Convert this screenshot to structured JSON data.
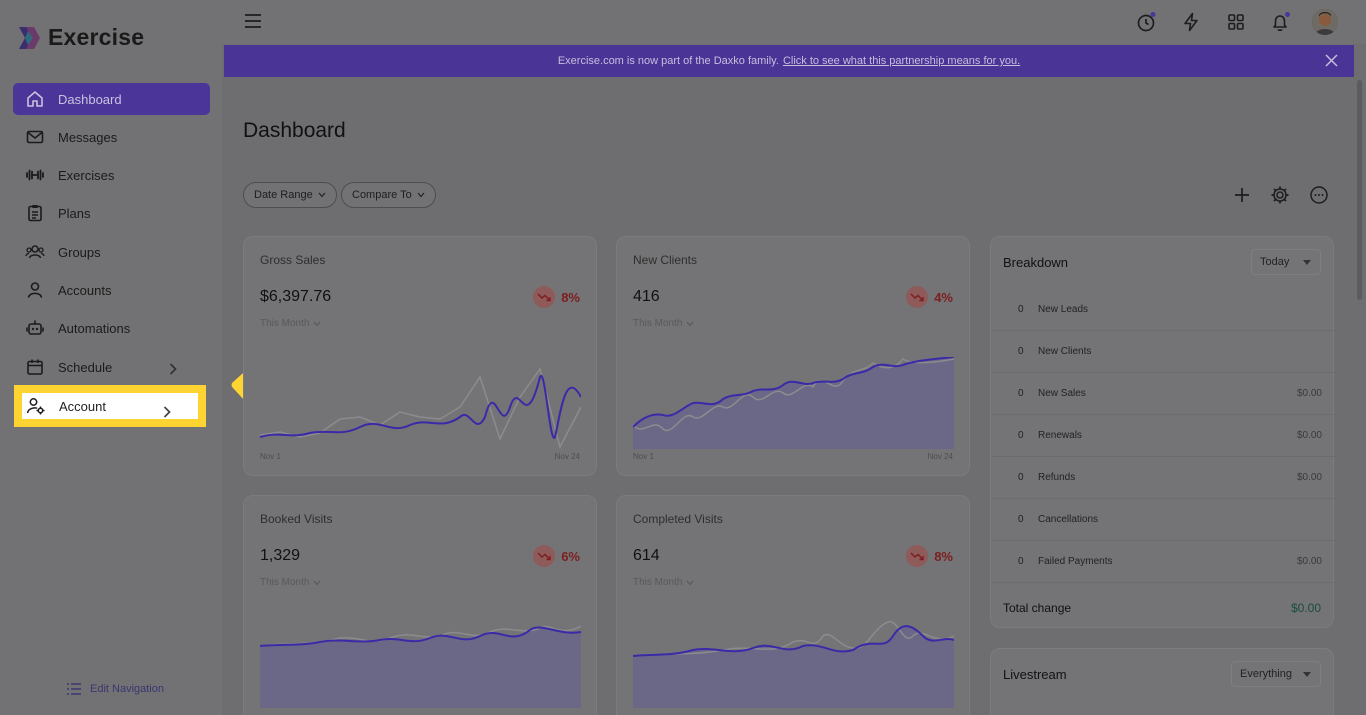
{
  "app": {
    "name": "Exercise"
  },
  "sidebar": {
    "items": [
      {
        "label": "Dashboard",
        "icon": "home-icon",
        "active": true
      },
      {
        "label": "Messages",
        "icon": "mail-icon"
      },
      {
        "label": "Exercises",
        "icon": "dumbbell-icon"
      },
      {
        "label": "Plans",
        "icon": "clipboard-icon"
      },
      {
        "label": "Groups",
        "icon": "users-icon"
      },
      {
        "label": "Accounts",
        "icon": "user-icon"
      },
      {
        "label": "Automations",
        "icon": "robot-icon"
      },
      {
        "label": "Schedule",
        "icon": "calendar-icon",
        "has_submenu": true
      },
      {
        "label": "Account",
        "icon": "user-gear-icon",
        "has_submenu": true,
        "highlighted": true
      }
    ],
    "edit_navigation": "Edit Navigation"
  },
  "banner": {
    "text": "Exercise.com is now part of the Daxko family.",
    "link": "Click to see what this partnership means for you."
  },
  "page": {
    "title": "Dashboard",
    "filters": [
      "Date Range",
      "Compare To"
    ]
  },
  "cards": [
    {
      "title": "Gross Sales",
      "value": "$6,397.76",
      "change": "8%",
      "period": "This Month",
      "start": "Nov 1",
      "end": "Nov 24"
    },
    {
      "title": "New Clients",
      "value": "416",
      "change": "4%",
      "period": "This Month",
      "start": "Nov 1",
      "end": "Nov 24"
    },
    {
      "title": "Booked Visits",
      "value": "1,329",
      "change": "6%",
      "period": "This Month",
      "start": "Nov 1",
      "end": "Nov 24"
    },
    {
      "title": "Completed Visits",
      "value": "614",
      "change": "8%",
      "period": "This Month",
      "start": "Nov 1",
      "end": "Nov 24"
    }
  ],
  "breakdown": {
    "title": "Breakdown",
    "range": "Today",
    "rows": [
      {
        "count": "0",
        "label": "New Leads",
        "amount": ""
      },
      {
        "count": "0",
        "label": "New Clients",
        "amount": ""
      },
      {
        "count": "0",
        "label": "New Sales",
        "amount": "$0.00"
      },
      {
        "count": "0",
        "label": "Renewals",
        "amount": "$0.00"
      },
      {
        "count": "0",
        "label": "Refunds",
        "amount": "$0.00"
      },
      {
        "count": "0",
        "label": "Cancellations",
        "amount": ""
      },
      {
        "count": "0",
        "label": "Failed Payments",
        "amount": "$0.00"
      }
    ],
    "total_label": "Total change",
    "total_value": "$0.00"
  },
  "livestream": {
    "title": "Livestream",
    "filter": "Everything"
  },
  "colors": {
    "accent": "#4c3599",
    "highlight": "#fdd431",
    "negative": "#7d1e1e",
    "positive": "#1a4d3a"
  }
}
